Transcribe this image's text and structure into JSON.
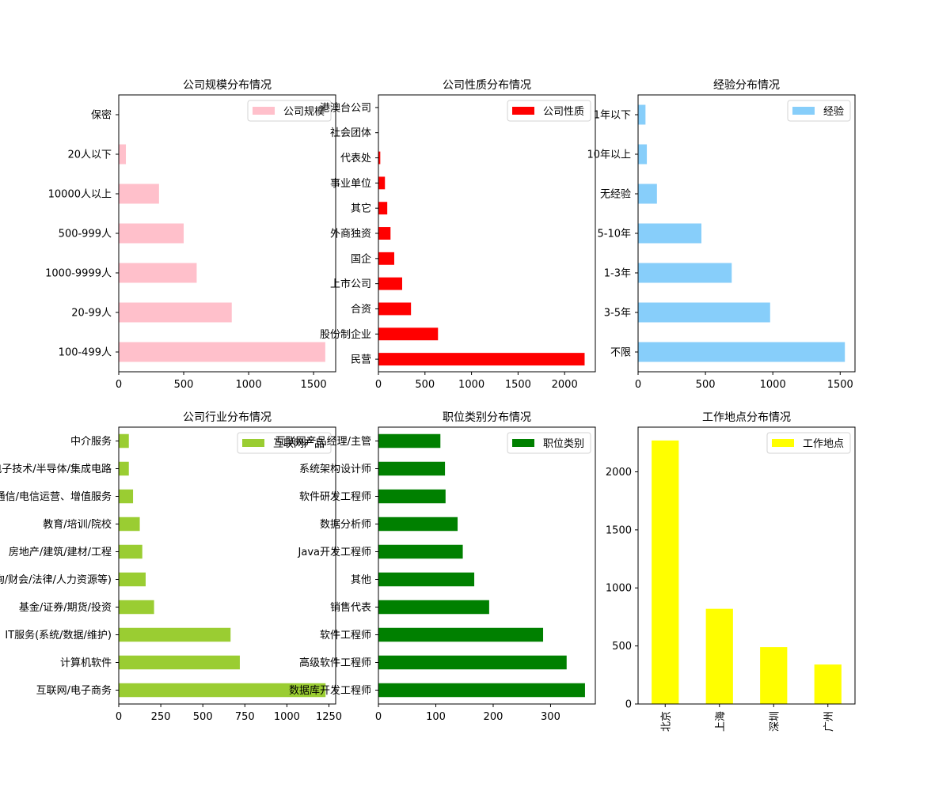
{
  "chart_data": [
    {
      "type": "bar",
      "orientation": "horizontal",
      "title": "公司规模分布情况",
      "categories": [
        "100-499人",
        "20-99人",
        "1000-9999人",
        "500-999人",
        "10000人以上",
        "20人以下",
        "保密"
      ],
      "series": [
        {
          "name": "公司规模",
          "values": [
            1590,
            870,
            600,
            500,
            310,
            55,
            2
          ]
        }
      ],
      "xlim": [
        0,
        1670
      ],
      "xticks": [
        0,
        500,
        1000,
        1500
      ],
      "color": "#FFC0CB",
      "legend": "upper right"
    },
    {
      "type": "bar",
      "orientation": "horizontal",
      "title": "公司性质分布情况",
      "categories": [
        "民营",
        "股份制企业",
        "合资",
        "上市公司",
        "国企",
        "外商独资",
        "其它",
        "事业单位",
        "代表处",
        "社会团体",
        "港澳台公司"
      ],
      "series": [
        {
          "name": "公司性质",
          "values": [
            2215,
            640,
            350,
            255,
            170,
            130,
            95,
            70,
            20,
            3,
            3
          ]
        }
      ],
      "xlim": [
        0,
        2330
      ],
      "xticks": [
        0,
        500,
        1000,
        1500,
        2000
      ],
      "color": "#FF0000",
      "legend": "upper right"
    },
    {
      "type": "bar",
      "orientation": "horizontal",
      "title": "经验分布情况",
      "categories": [
        "不限",
        "3-5年",
        "1-3年",
        "5-10年",
        "无经验",
        "10年以上",
        "1年以下"
      ],
      "series": [
        {
          "name": "经验",
          "values": [
            1535,
            980,
            695,
            470,
            140,
            65,
            55
          ]
        }
      ],
      "xlim": [
        0,
        1610
      ],
      "xticks": [
        0,
        500,
        1000,
        1500
      ],
      "color": "#87CEFA",
      "legend": "upper right"
    },
    {
      "type": "bar",
      "orientation": "horizontal",
      "title": "公司行业分布情况",
      "categories": [
        "互联网/电子商务",
        "计算机软件",
        "IT服务(系统/数据/维护)",
        "基金/证券/期货/投资",
        "专业服务(咨询/财会/法律/人力资源等)",
        "房地产/建筑/建材/工程",
        "教育/培训/院校",
        "通信/电信运营、增值服务",
        "电子技术/半导体/集成电路",
        "中介服务"
      ],
      "series": [
        {
          "name": "互联网产品",
          "values": [
            1230,
            720,
            665,
            210,
            160,
            140,
            125,
            85,
            60,
            60
          ]
        }
      ],
      "xlim": [
        0,
        1290
      ],
      "xticks": [
        0,
        250,
        500,
        750,
        1000,
        1250
      ],
      "color": "#9ACD32",
      "legend": "upper right"
    },
    {
      "type": "bar",
      "orientation": "horizontal",
      "title": "职位类别分布情况",
      "categories": [
        "数据库开发工程师",
        "高级软件工程师",
        "软件工程师",
        "销售代表",
        "其他",
        "Java开发工程师",
        "数据分析师",
        "软件研发工程师",
        "系统架构设计师",
        "互联网产品经理/主管"
      ],
      "series": [
        {
          "name": "职位类别",
          "values": [
            360,
            328,
            287,
            193,
            167,
            147,
            138,
            117,
            116,
            108
          ]
        }
      ],
      "xlim": [
        0,
        378
      ],
      "xticks": [
        0,
        100,
        200,
        300
      ],
      "color": "#008000",
      "legend": "upper right"
    },
    {
      "type": "bar",
      "orientation": "vertical",
      "title": "工作地点分布情况",
      "categories": [
        "北京",
        "上海",
        "深圳",
        "广州"
      ],
      "series": [
        {
          "name": "工作地点",
          "values": [
            2270,
            820,
            490,
            340
          ]
        }
      ],
      "ylim": [
        0,
        2385
      ],
      "yticks": [
        0,
        500,
        1000,
        1500,
        2000
      ],
      "color": "#FFFF00",
      "legend": "upper right"
    }
  ]
}
